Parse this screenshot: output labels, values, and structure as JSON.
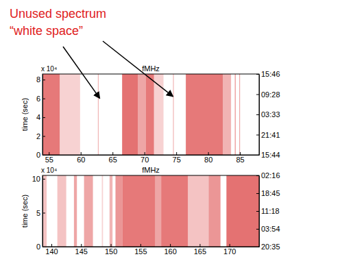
{
  "chart_data": [
    {
      "type": "occupancy",
      "xlabel": "fMHz",
      "ylabel": "time (sec)",
      "y_multiplier": "x 10⁴",
      "color": "#e36a6a",
      "xlim": [
        54,
        88
      ],
      "xticks": [
        55,
        60,
        65,
        70,
        75,
        80,
        85
      ],
      "ylim": [
        0,
        8.6
      ],
      "yticks": [
        0,
        2,
        4,
        6,
        8
      ],
      "y2lim": [
        0,
        8.6
      ],
      "y2ticks": [
        {
          "value": 0,
          "label": "15:44"
        },
        {
          "value": 2.15,
          "label": "21:41"
        },
        {
          "value": 4.3,
          "label": "03:33"
        },
        {
          "value": 6.45,
          "label": "09:28"
        },
        {
          "value": 8.6,
          "label": "15:46"
        }
      ],
      "grid": false,
      "annotations": [
        {
          "text": [
            "Unused spectrum",
            "“white space”"
          ],
          "targets": [
            {
              "x": 63,
              "y": 6
            },
            {
              "x": 74.5,
              "y": 6.2
            }
          ]
        }
      ],
      "bands": [
        {
          "start": 54.0,
          "end": 56.7,
          "occupancy": 0.9
        },
        {
          "start": 56.7,
          "end": 59.9,
          "occupancy": 0.3
        },
        {
          "start": 62.7,
          "end": 62.8,
          "occupancy": 0.6
        },
        {
          "start": 66.5,
          "end": 69.0,
          "occupancy": 0.95
        },
        {
          "start": 69.0,
          "end": 70.2,
          "occupancy": 0.6
        },
        {
          "start": 70.2,
          "end": 71.5,
          "occupancy": 0.9
        },
        {
          "start": 71.5,
          "end": 73.0,
          "occupancy": 0.3
        },
        {
          "start": 74.5,
          "end": 74.6,
          "occupancy": 0.6
        },
        {
          "start": 76.5,
          "end": 82.3,
          "occupancy": 0.9
        },
        {
          "start": 82.3,
          "end": 83.6,
          "occupancy": 0.5
        },
        {
          "start": 84.2,
          "end": 84.3,
          "occupancy": 0.9
        },
        {
          "start": 84.9,
          "end": 85.0,
          "occupancy": 0.7
        }
      ]
    },
    {
      "type": "occupancy",
      "xlabel": "fMHz",
      "ylabel": "time (sec)",
      "y_multiplier": "x 10⁴",
      "color": "#e36a6a",
      "xlim": [
        138.5,
        175
      ],
      "xticks": [
        140,
        145,
        150,
        155,
        160,
        165,
        170
      ],
      "ylim": [
        0,
        10.5
      ],
      "yticks": [
        0,
        5,
        10
      ],
      "y2lim": [
        0,
        10.5
      ],
      "y2ticks": [
        {
          "value": 0,
          "label": "20:35"
        },
        {
          "value": 2.625,
          "label": "03:54"
        },
        {
          "value": 5.25,
          "label": "11:18"
        },
        {
          "value": 7.875,
          "label": "18:45"
        },
        {
          "value": 10.5,
          "label": "02:16"
        }
      ],
      "grid": false,
      "bands": [
        {
          "start": 138.5,
          "end": 139.2,
          "occupancy": 0.4
        },
        {
          "start": 141.0,
          "end": 142.5,
          "occupancy": 0.4
        },
        {
          "start": 143.8,
          "end": 144.3,
          "occupancy": 0.6
        },
        {
          "start": 145.5,
          "end": 147.0,
          "occupancy": 0.6
        },
        {
          "start": 148.5,
          "end": 148.7,
          "occupancy": 0.3
        },
        {
          "start": 149.8,
          "end": 150.3,
          "occupancy": 0.5
        },
        {
          "start": 150.8,
          "end": 152.0,
          "occupancy": 0.7
        },
        {
          "start": 152.0,
          "end": 157.5,
          "occupancy": 0.9
        },
        {
          "start": 157.5,
          "end": 158.5,
          "occupancy": 0.6
        },
        {
          "start": 158.5,
          "end": 163.0,
          "occupancy": 0.9
        },
        {
          "start": 163.0,
          "end": 166.5,
          "occupancy": 0.4
        },
        {
          "start": 166.5,
          "end": 168.5,
          "occupancy": 0.7
        },
        {
          "start": 169.5,
          "end": 175.0,
          "occupancy": 0.95
        }
      ]
    }
  ]
}
